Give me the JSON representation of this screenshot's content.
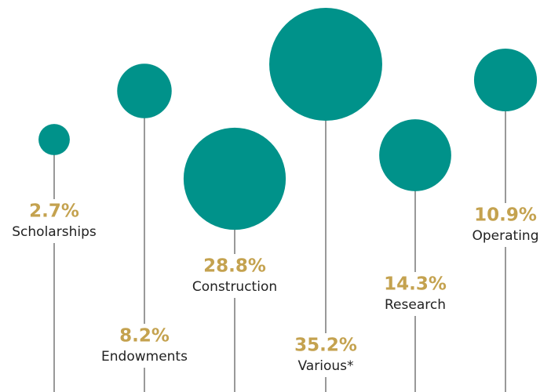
{
  "chart_data": {
    "type": "bubble",
    "categories": [
      "Scholarships",
      "Endowments",
      "Construction",
      "Various*",
      "Research",
      "Operating"
    ],
    "values": [
      2.7,
      8.2,
      28.8,
      35.2,
      14.3,
      10.9
    ],
    "value_labels": [
      "2.7%",
      "8.2%",
      "28.8%",
      "35.2%",
      "14.3%",
      "10.9%"
    ],
    "color": "#00928a"
  }
}
